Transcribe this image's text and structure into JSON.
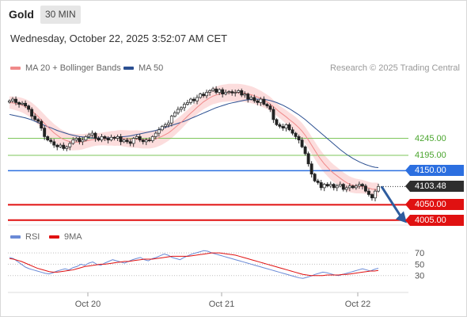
{
  "header": {
    "symbol": "Gold",
    "timeframe": "30 MIN"
  },
  "timestamp": "Wednesday, October 22, 2025 3:52:07 AM CET",
  "legend": {
    "ma_bb": "MA 20 + Bollinger Bands",
    "ma50": "MA 50"
  },
  "copyright": "Research © 2025 Trading Central",
  "rsi_legend": {
    "rsi": "RSI",
    "ma9": "9MA"
  },
  "colors": {
    "ma_bb": "#f08a8a",
    "ma50": "#2b4f91",
    "rsi": "#6a8ad6",
    "ma9": "#e01111",
    "band_fill": "#fbd7d7",
    "support_green": "#7dc65a",
    "pivot_blue": "#2c6fe0",
    "red_level": "#e01111",
    "price_tag": "#2e2e2e",
    "arrow": "#2e5c9e"
  },
  "chart_data": [
    {
      "type": "candlestick",
      "x_labels": [
        "Oct 20",
        "Oct 21",
        "Oct 22"
      ],
      "y_range": [
        3995,
        4430
      ],
      "levels": [
        {
          "label": "4245.00",
          "value": 4245,
          "style": "green"
        },
        {
          "label": "4195.00",
          "value": 4195,
          "style": "green"
        },
        {
          "label": "4150.00",
          "value": 4150,
          "style": "blue"
        },
        {
          "label": "4103.48",
          "value": 4103.48,
          "style": "price"
        },
        {
          "label": "4050.00",
          "value": 4050,
          "style": "red"
        },
        {
          "label": "4005.00",
          "value": 4005,
          "style": "red"
        }
      ],
      "close_path": [
        4355,
        4360,
        4350,
        4345,
        4348,
        4340,
        4330,
        4310,
        4300,
        4295,
        4275,
        4250,
        4240,
        4235,
        4225,
        4220,
        4225,
        4215,
        4220,
        4230,
        4240,
        4245,
        4235,
        4240,
        4250,
        4255,
        4260,
        4245,
        4240,
        4250,
        4245,
        4240,
        4248,
        4245,
        4250,
        4235,
        4240,
        4235,
        4230,
        4245,
        4250,
        4240,
        4235,
        4240,
        4238,
        4250,
        4260,
        4270,
        4280,
        4285,
        4290,
        4310,
        4320,
        4330,
        4335,
        4345,
        4350,
        4360,
        4355,
        4365,
        4375,
        4370,
        4380,
        4385,
        4390,
        4380,
        4388,
        4375,
        4380,
        4382,
        4378,
        4380,
        4385,
        4372,
        4375,
        4360,
        4365,
        4355,
        4350,
        4360,
        4345,
        4340,
        4330,
        4300,
        4285,
        4280,
        4275,
        4285,
        4270,
        4260,
        4250,
        4240,
        4220,
        4200,
        4170,
        4140,
        4120,
        4115,
        4100,
        4110,
        4105,
        4110,
        4100,
        4105,
        4110,
        4095,
        4100,
        4105,
        4100,
        4105,
        4110,
        4105,
        4090,
        4080,
        4070,
        4090,
        4103.48
      ],
      "ma20": [
        4350,
        4349,
        4347,
        4345,
        4342,
        4338,
        4333,
        4326,
        4318,
        4309,
        4299,
        4289,
        4279,
        4270,
        4261,
        4254,
        4247,
        4242,
        4238,
        4235,
        4234,
        4234,
        4234,
        4235,
        4237,
        4239,
        4241,
        4242,
        4242,
        4243,
        4244,
        4244,
        4245,
        4245,
        4246,
        4246,
        4245,
        4244,
        4243,
        4243,
        4243,
        4242,
        4241,
        4241,
        4241,
        4242,
        4244,
        4247,
        4251,
        4256,
        4261,
        4268,
        4276,
        4284,
        4292,
        4301,
        4310,
        4319,
        4327,
        4336,
        4344,
        4352,
        4358,
        4364,
        4369,
        4372,
        4375,
        4377,
        4378,
        4379,
        4379,
        4379,
        4379,
        4378,
        4377,
        4375,
        4373,
        4370,
        4366,
        4362,
        4357,
        4352,
        4346,
        4338,
        4330,
        4322,
        4315,
        4308,
        4300,
        4293,
        4285,
        4276,
        4266,
        4254,
        4240,
        4225,
        4210,
        4195,
        4182,
        4170,
        4160,
        4150,
        4142,
        4135,
        4128,
        4121,
        4115,
        4110,
        4107,
        4105,
        4104,
        4103,
        4101,
        4099,
        4096,
        4095,
        4094
      ],
      "ma50": [
        4315,
        4313,
        4311,
        4309,
        4307,
        4305,
        4302,
        4299,
        4295,
        4291,
        4287,
        4283,
        4279,
        4276,
        4272,
        4268,
        4265,
        4262,
        4259,
        4256,
        4254,
        4252,
        4250,
        4249,
        4248,
        4247,
        4246,
        4246,
        4246,
        4246,
        4246,
        4246,
        4247,
        4247,
        4248,
        4249,
        4250,
        4251,
        4252,
        4254,
        4256,
        4258,
        4260,
        4262,
        4264,
        4266,
        4268,
        4271,
        4274,
        4277,
        4280,
        4283,
        4286,
        4289,
        4292,
        4295,
        4299,
        4303,
        4307,
        4311,
        4315,
        4319,
        4323,
        4327,
        4331,
        4335,
        4338,
        4341,
        4344,
        4347,
        4349,
        4351,
        4353,
        4355,
        4357,
        4358,
        4359,
        4360,
        4360,
        4360,
        4359,
        4358,
        4356,
        4353,
        4350,
        4346,
        4342,
        4337,
        4332,
        4326,
        4320,
        4314,
        4307,
        4300,
        4292,
        4284,
        4276,
        4268,
        4260,
        4252,
        4244,
        4236,
        4228,
        4220,
        4212,
        4205,
        4198,
        4192,
        4186,
        4181,
        4176,
        4172,
        4168,
        4165,
        4162,
        4160,
        4159
      ]
    },
    {
      "type": "line",
      "title": "RSI",
      "y_ticks": [
        70,
        50,
        30
      ],
      "rsi": [
        62,
        60,
        55,
        50,
        45,
        42,
        40,
        38,
        36,
        34,
        33,
        35,
        38,
        40,
        42,
        40,
        44,
        46,
        50,
        48,
        52,
        54,
        50,
        48,
        52,
        55,
        58,
        56,
        54,
        52,
        55,
        58,
        60,
        62,
        58,
        56,
        60,
        62,
        65,
        68,
        66,
        62,
        60,
        58,
        62,
        65,
        68,
        70,
        72,
        74,
        73,
        70,
        68,
        66,
        64,
        62,
        60,
        58,
        56,
        54,
        52,
        50,
        48,
        46,
        44,
        42,
        40,
        38,
        36,
        34,
        32,
        30,
        28,
        26,
        25,
        27,
        29,
        32,
        34,
        36,
        35,
        33,
        31,
        30,
        32,
        34,
        36,
        38,
        40,
        42,
        40,
        38,
        41,
        43
      ],
      "ma9": [
        60,
        59,
        57,
        55,
        52,
        49,
        46,
        43,
        41,
        39,
        37,
        36,
        36,
        37,
        38,
        39,
        40,
        42,
        44,
        46,
        47,
        48,
        49,
        50,
        50,
        51,
        52,
        53,
        54,
        55,
        55,
        56,
        57,
        58,
        59,
        59,
        59,
        60,
        61,
        62,
        63,
        64,
        64,
        64,
        64,
        64,
        65,
        66,
        67,
        68,
        69,
        70,
        70,
        70,
        69,
        68,
        67,
        66,
        64,
        62,
        60,
        58,
        56,
        54,
        52,
        50,
        48,
        46,
        44,
        42,
        40,
        38,
        36,
        34,
        32,
        31,
        30,
        30,
        30,
        30,
        31,
        31,
        31,
        31,
        32,
        32,
        33,
        34,
        35,
        36,
        37,
        38,
        38,
        39
      ]
    }
  ]
}
